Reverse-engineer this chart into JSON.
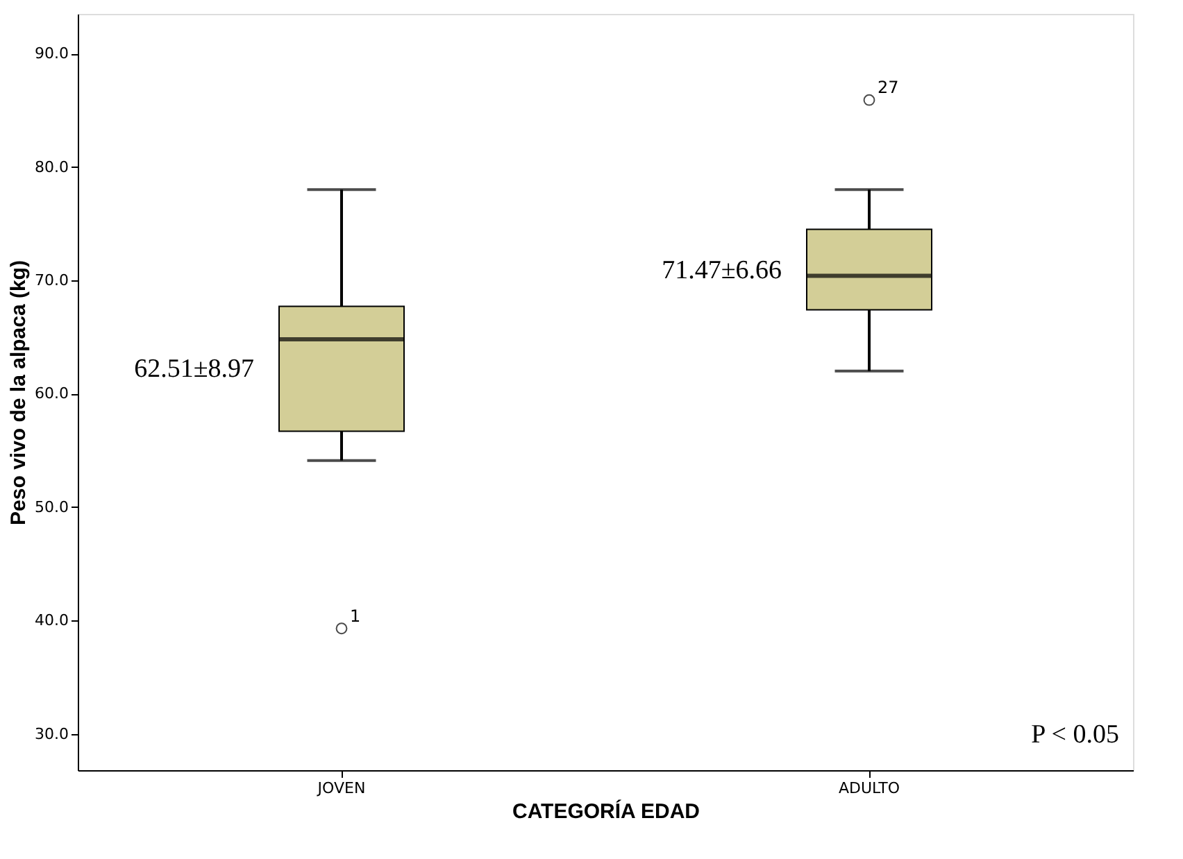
{
  "chart_data": {
    "type": "box",
    "xlabel": "CATEGORÍA EDAD",
    "ylabel": "Peso vivo de la alpaca (kg)",
    "categories": [
      "JOVEN",
      "ADULTO"
    ],
    "series": [
      {
        "color": "#d3ce97",
        "boxes": [
          {
            "low": 54.1,
            "q1": 56.7,
            "median": 64.8,
            "q3": 67.7,
            "high": 78.0,
            "outliers": [
              39.3
            ]
          },
          {
            "low": 62.0,
            "q1": 67.4,
            "median": 70.4,
            "q3": 74.5,
            "high": 78.0,
            "outliers": [
              85.9
            ]
          }
        ]
      }
    ],
    "ylim": [
      26.8,
      93.5
    ],
    "yticks": [
      {
        "value": 30,
        "label": "30.0"
      },
      {
        "value": 40,
        "label": "40.0"
      },
      {
        "value": 50,
        "label": "50.0"
      },
      {
        "value": 60,
        "label": "60.0"
      },
      {
        "value": 70,
        "label": "70.0"
      },
      {
        "value": 80,
        "label": "80.0"
      },
      {
        "value": 90,
        "label": "90.0"
      }
    ],
    "grid": false,
    "annotations": [
      "62.51±8.97",
      "71.47±6.66",
      "1",
      "27",
      "P < 0.05"
    ]
  }
}
